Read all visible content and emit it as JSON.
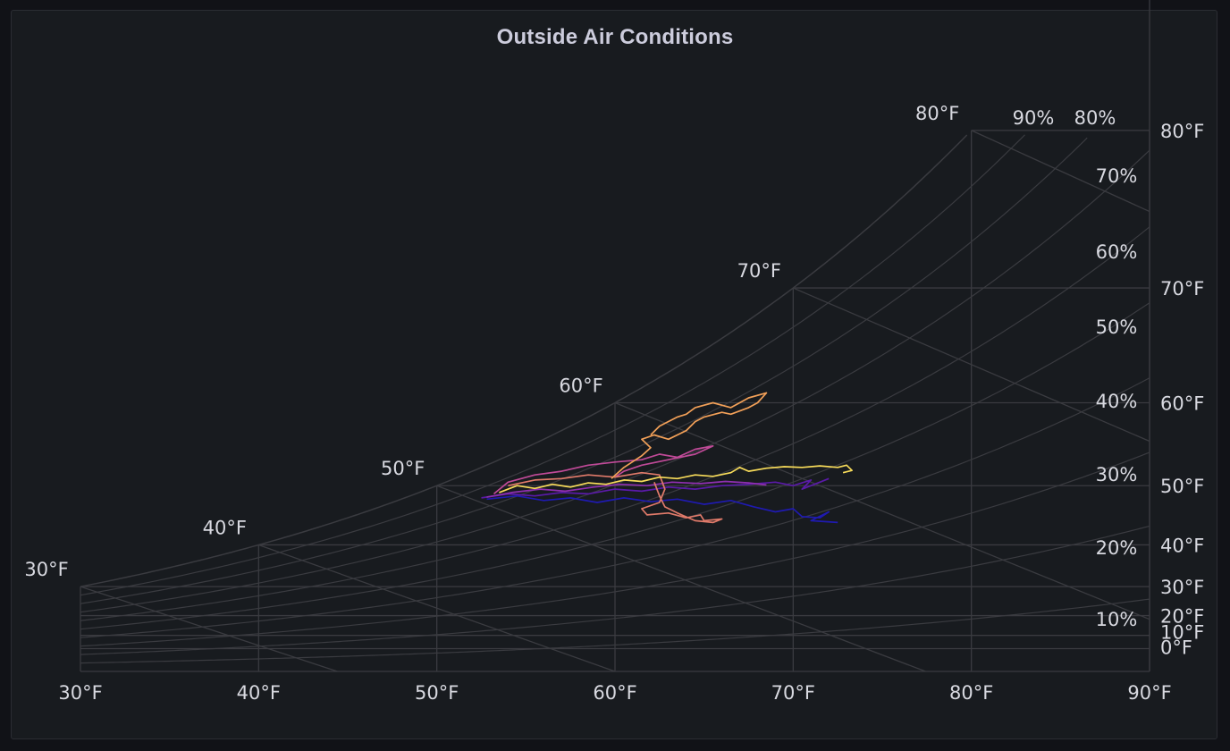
{
  "panel": {
    "title": "Outside Air Conditions"
  },
  "chart_data": {
    "type": "line",
    "chart_kind": "psychrometric",
    "title": "Outside Air Conditions",
    "xlim_f": [
      30,
      90
    ],
    "x_ticks": [
      "30°F",
      "40°F",
      "50°F",
      "60°F",
      "70°F",
      "80°F",
      "90°F"
    ],
    "x_tick_values": [
      30,
      40,
      50,
      60,
      70,
      80,
      90
    ],
    "right_axis_ticks": [
      "80°F",
      "70°F",
      "60°F",
      "50°F",
      "40°F",
      "30°F",
      "20°F",
      "10°F",
      "0°F"
    ],
    "right_axis_values": [
      80,
      70,
      60,
      50,
      40,
      30,
      20,
      10,
      0
    ],
    "saturation_labels": [
      "30°F",
      "40°F",
      "50°F",
      "60°F",
      "70°F",
      "80°F"
    ],
    "saturation_values": [
      30,
      40,
      50,
      60,
      70,
      80
    ],
    "rh_curves": [
      10,
      20,
      30,
      40,
      50,
      60,
      70,
      80,
      90,
      100
    ],
    "rh_labels": [
      "10%",
      "20%",
      "30%",
      "40%",
      "50%",
      "60%",
      "70%",
      "80%",
      "90%"
    ],
    "rh_label_values": [
      10,
      20,
      30,
      40,
      50,
      60,
      70,
      80,
      90
    ],
    "grid": true,
    "colors": {
      "grid": "#3a3b40",
      "text": "#d8d9e0",
      "series": [
        "#1f1ab0",
        "#5a1aa8",
        "#8f2fb0",
        "#c04a98",
        "#e07a6a",
        "#f2a058",
        "#f8dc5a"
      ]
    },
    "series": [
      {
        "points": [
          [
            52.8,
            48
          ],
          [
            54.5,
            48.5
          ],
          [
            56,
            47.8
          ],
          [
            57.5,
            48.2
          ],
          [
            59,
            47.5
          ],
          [
            60.5,
            48.2
          ],
          [
            62,
            47.6
          ],
          [
            63.5,
            48
          ],
          [
            65,
            47.2
          ],
          [
            66.5,
            47.8
          ],
          [
            67.8,
            46.8
          ],
          [
            69,
            46
          ],
          [
            70,
            46.5
          ],
          [
            70.5,
            45.2
          ],
          [
            71.5,
            45
          ],
          [
            72,
            46
          ],
          [
            71,
            44.5
          ],
          [
            72.5,
            44.2
          ]
        ]
      },
      {
        "points": [
          [
            52.5,
            48.2
          ],
          [
            54,
            48.8
          ],
          [
            55.5,
            48.5
          ],
          [
            57,
            49
          ],
          [
            58.5,
            48.8
          ],
          [
            60,
            49.5
          ],
          [
            61.5,
            49.2
          ],
          [
            63,
            49.8
          ],
          [
            64.5,
            49.5
          ],
          [
            66,
            50
          ],
          [
            67.5,
            50.2
          ],
          [
            69,
            50.5
          ],
          [
            70,
            50
          ],
          [
            71,
            50.8
          ],
          [
            70.5,
            49.5
          ],
          [
            71.5,
            50.5
          ],
          [
            72,
            51
          ]
        ]
      },
      {
        "points": [
          [
            52.8,
            48.3
          ],
          [
            54.2,
            49
          ],
          [
            55.8,
            49.5
          ],
          [
            57.2,
            49.2
          ],
          [
            58.8,
            49.8
          ],
          [
            60.3,
            50.2
          ],
          [
            61.8,
            50
          ],
          [
            63.2,
            50.5
          ],
          [
            64.8,
            50.3
          ],
          [
            66.2,
            50.6
          ],
          [
            67.5,
            50.4
          ],
          [
            68.5,
            50.1
          ]
        ]
      },
      {
        "points": [
          [
            53.2,
            48.8
          ],
          [
            54,
            50.5
          ],
          [
            55.5,
            51.5
          ],
          [
            57,
            52
          ],
          [
            58.5,
            52.8
          ],
          [
            60,
            53.2
          ],
          [
            61.5,
            53.5
          ],
          [
            62.5,
            54.2
          ],
          [
            63.5,
            53.8
          ],
          [
            64.5,
            54.8
          ],
          [
            65.5,
            55.2
          ],
          [
            64.5,
            54.2
          ],
          [
            63,
            53.5
          ],
          [
            61.5,
            52.8
          ],
          [
            60.5,
            52
          ],
          [
            60,
            51.2
          ]
        ]
      },
      {
        "points": [
          [
            54,
            50
          ],
          [
            55.5,
            50.8
          ],
          [
            57,
            51
          ],
          [
            58.5,
            51.5
          ],
          [
            60,
            51.2
          ],
          [
            61.5,
            51.8
          ],
          [
            62.5,
            51.5
          ],
          [
            62.8,
            49.5
          ],
          [
            62.5,
            47.5
          ],
          [
            61.5,
            46.5
          ],
          [
            61.8,
            45.5
          ],
          [
            63,
            45.8
          ],
          [
            64,
            45
          ],
          [
            64.8,
            45.5
          ],
          [
            65,
            44.5
          ],
          [
            66,
            44.8
          ],
          [
            65.5,
            44.2
          ],
          [
            64.5,
            44.5
          ],
          [
            63.5,
            45.8
          ],
          [
            62.8,
            46.8
          ],
          [
            62.5,
            48.5
          ],
          [
            62.2,
            50.5
          ]
        ]
      },
      {
        "points": [
          [
            59.8,
            51
          ],
          [
            60.5,
            52.5
          ],
          [
            61.5,
            54
          ],
          [
            62,
            55
          ],
          [
            61.5,
            56
          ],
          [
            62.2,
            56.5
          ],
          [
            63,
            56
          ],
          [
            64,
            57
          ],
          [
            64.5,
            58
          ],
          [
            65,
            58.5
          ],
          [
            66,
            59
          ],
          [
            66.5,
            58.8
          ],
          [
            67.5,
            59.5
          ],
          [
            68,
            60
          ],
          [
            68.5,
            61
          ],
          [
            67.5,
            60.5
          ],
          [
            67,
            60
          ],
          [
            66.5,
            59.5
          ],
          [
            65.5,
            60
          ],
          [
            64.5,
            59.5
          ],
          [
            64,
            58.8
          ],
          [
            63.5,
            58.5
          ],
          [
            62.5,
            57.5
          ],
          [
            62,
            56.5
          ]
        ]
      },
      {
        "points": [
          [
            53.5,
            49
          ],
          [
            54.5,
            50
          ],
          [
            55.5,
            49.6
          ],
          [
            56.5,
            50.2
          ],
          [
            57.5,
            49.8
          ],
          [
            58.5,
            50.4
          ],
          [
            59.5,
            50.2
          ],
          [
            60.5,
            50.8
          ],
          [
            61.5,
            50.6
          ],
          [
            62.5,
            51.2
          ],
          [
            63.5,
            51
          ],
          [
            64.5,
            51.5
          ],
          [
            65.5,
            51.3
          ],
          [
            66.5,
            51.8
          ],
          [
            67,
            52.5
          ],
          [
            67.5,
            52
          ],
          [
            68.5,
            52.4
          ],
          [
            69.5,
            52.6
          ],
          [
            70.5,
            52.5
          ],
          [
            71.5,
            52.7
          ],
          [
            72.5,
            52.5
          ],
          [
            73,
            52.8
          ],
          [
            73.3,
            52.1
          ],
          [
            72.8,
            51.8
          ]
        ]
      }
    ]
  }
}
